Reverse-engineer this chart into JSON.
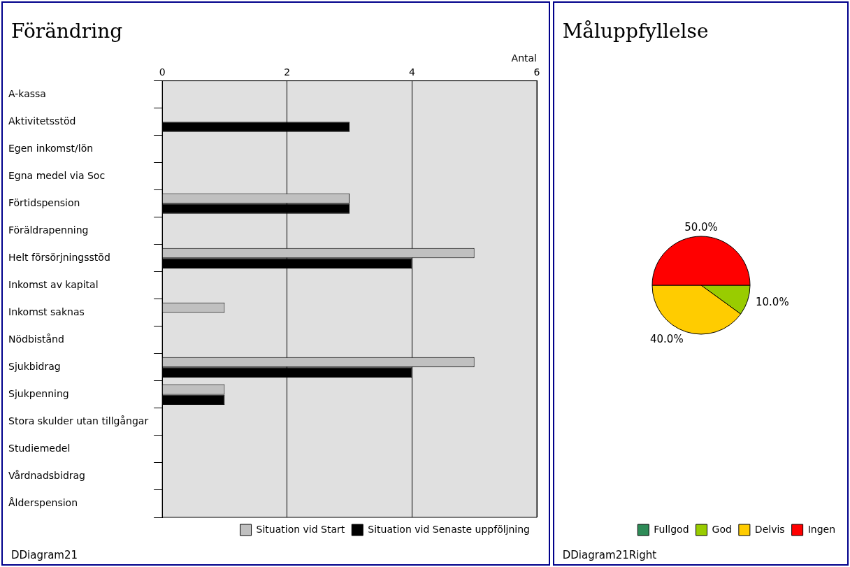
{
  "chart_data": [
    {
      "type": "bar",
      "title": "Förändring",
      "orientation": "horizontal",
      "xlabel": "Antal",
      "categories": [
        "A-kassa",
        "Aktivitetsstöd",
        "Egen inkomst/lön",
        "Egna medel via Soc",
        "Förtidspension",
        "Föräldrapenning",
        "Helt försörjningsstöd",
        "Inkomst av kapital",
        "Inkomst saknas",
        "Nödbistånd",
        "Sjukbidrag",
        "Sjukpenning",
        "Stora skulder utan tillgångar",
        "Studiemedel",
        "Vårdnadsbidrag",
        "Ålderspension"
      ],
      "series": [
        {
          "name": "Situation vid Start",
          "color": "#c0c0c0",
          "values": [
            0,
            0,
            0,
            0,
            3,
            0,
            5,
            0,
            1,
            0,
            5,
            1,
            0,
            0,
            0,
            0
          ]
        },
        {
          "name": "Situation vid Senaste uppföljning",
          "color": "#000000",
          "values": [
            0,
            3,
            0,
            0,
            3,
            0,
            4,
            0,
            0,
            0,
            4,
            1,
            0,
            0,
            0,
            0
          ]
        }
      ],
      "xlim": [
        0,
        6
      ],
      "xticks": [
        0,
        2,
        4,
        6
      ],
      "grid": "x",
      "legend": "bottom right",
      "annotations": [
        "DDiagram21"
      ]
    },
    {
      "type": "pie",
      "title": "Måluppfyllelse",
      "categories": [
        "Fullgod",
        "God",
        "Delvis",
        "Ingen"
      ],
      "values": [
        0,
        10,
        40,
        50
      ],
      "colors": [
        "#2e8b57",
        "#99cc00",
        "#ffcc00",
        "#ff0000"
      ],
      "value_labels": [
        null,
        "10.0%",
        "40.0%",
        "50.0%"
      ],
      "legend": "bottom right",
      "annotations": [
        "DDiagram21Right"
      ]
    }
  ]
}
